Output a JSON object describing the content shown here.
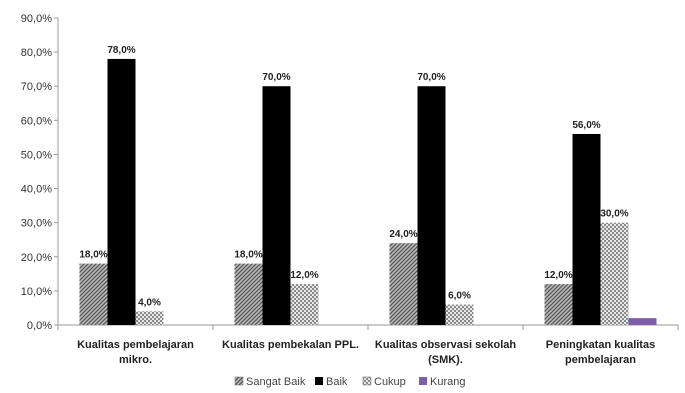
{
  "chart_data": {
    "type": "bar",
    "title": "",
    "xlabel": "",
    "ylabel": "",
    "ylim": [
      0,
      90
    ],
    "yticks": [
      "0,0%",
      "10,0%",
      "20,0%",
      "30,0%",
      "40,0%",
      "50,0%",
      "60,0%",
      "70,0%",
      "80,0%",
      "90,0%"
    ],
    "grid": false,
    "legend_position": "bottom",
    "categories": [
      [
        "Kualitas pembelajaran",
        "mikro."
      ],
      [
        "Kualitas pembekalan PPL."
      ],
      [
        "Kualitas observasi sekolah",
        "(SMK)."
      ],
      [
        "Peningkatan kualitas",
        "pembelajaran"
      ]
    ],
    "series": [
      {
        "name": "Sangat Baik",
        "pattern": "diagonal",
        "color": "#8c8c8c",
        "values": [
          18,
          18,
          24,
          12
        ],
        "labels": [
          "18,0%",
          "18,0%",
          "24,0%",
          "12,0%"
        ]
      },
      {
        "name": "Baik",
        "pattern": "solid",
        "color": "#000000",
        "values": [
          78,
          70,
          70,
          56
        ],
        "labels": [
          "78,0%",
          "70,0%",
          "70,0%",
          "56,0%"
        ]
      },
      {
        "name": "Cukup",
        "pattern": "checker",
        "color": "#9a9a9a",
        "values": [
          4,
          12,
          6,
          30
        ],
        "labels": [
          "4,0%",
          "12,0%",
          "6,0%",
          "30,0%"
        ]
      },
      {
        "name": "Kurang",
        "pattern": "solid",
        "color": "#7b5ea7",
        "values": [
          0,
          0,
          0,
          2
        ],
        "labels": [
          "",
          "",
          "",
          ""
        ]
      }
    ]
  }
}
